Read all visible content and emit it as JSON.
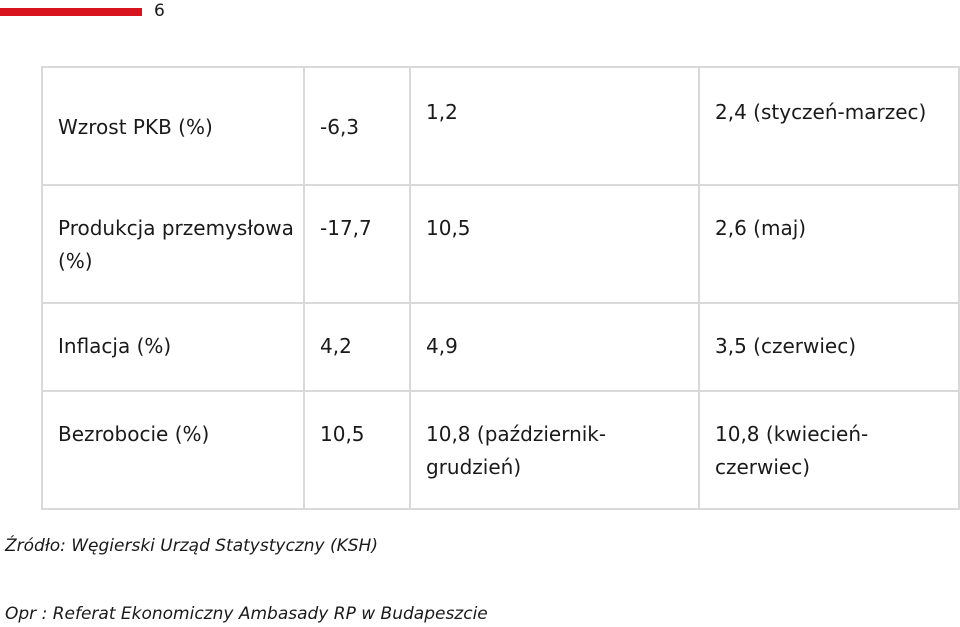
{
  "header": {
    "page_number": "6",
    "accent_color": "#d8141e"
  },
  "table": {
    "rows": [
      {
        "label": "Wzrost PKB (%)",
        "v1": "-6,3",
        "v2": "1,2",
        "v3": "2,4 (styczeń-marzec)"
      },
      {
        "label": "Produkcja przemysłowa (%)",
        "v1": "-17,7",
        "v2": "10,5",
        "v3": "2,6 (maj)"
      },
      {
        "label": "Inflacja (%)",
        "v1": "4,2",
        "v2": "4,9",
        "v3": "3,5 (czerwiec)"
      },
      {
        "label": "Bezrobocie (%)",
        "v1": "10,5",
        "v2": "10,8 (październik-grudzień)",
        "v3": "10,8 (kwiecień-czerwiec)"
      }
    ]
  },
  "footer": {
    "source": "Źródło: Węgierski Urząd Statystyczny (KSH)",
    "author": "Opr : Referat Ekonomiczny Ambasady RP w Budapeszcie"
  }
}
